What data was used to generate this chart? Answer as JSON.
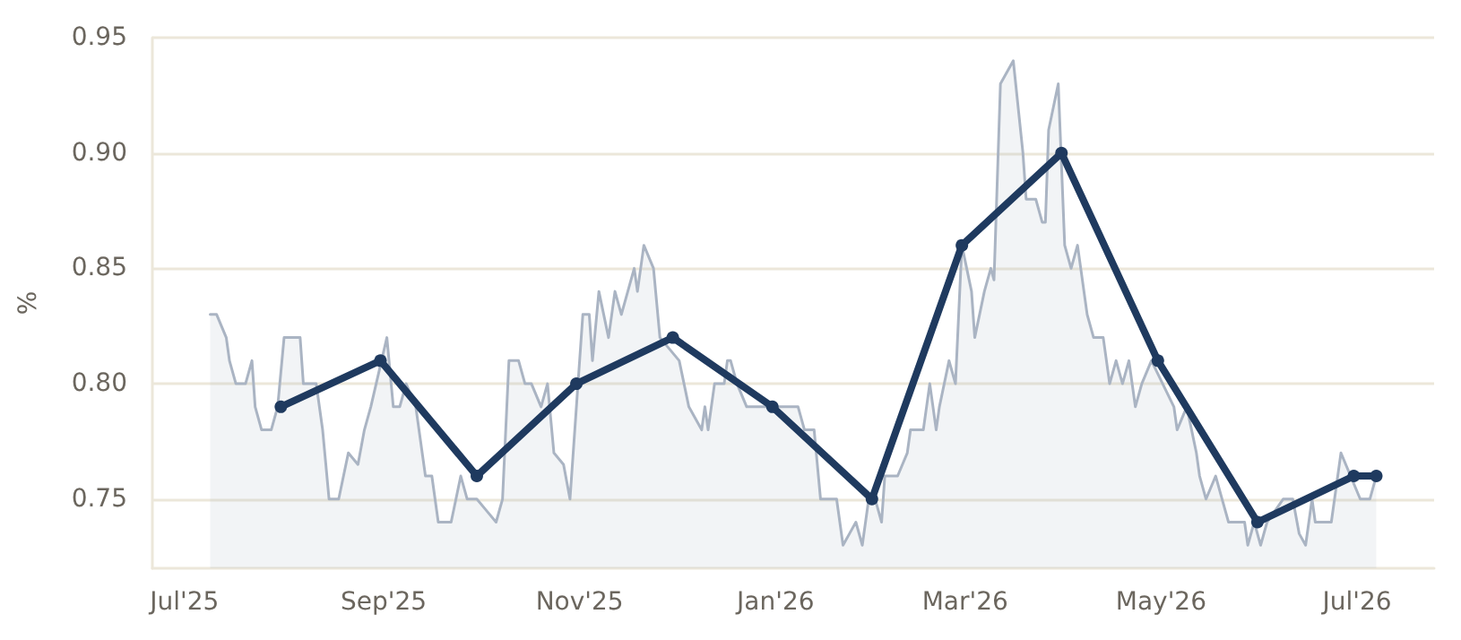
{
  "chart_data": {
    "type": "line",
    "ylabel": "%",
    "xlim": [
      "2025-06-21",
      "2026-07-25"
    ],
    "xticks": [
      {
        "value": "2025-07-01",
        "label": "Jul'25"
      },
      {
        "value": "2025-09-01",
        "label": "Sep'25"
      },
      {
        "value": "2025-11-01",
        "label": "Nov'25"
      },
      {
        "value": "2026-01-01",
        "label": "Jan'26"
      },
      {
        "value": "2026-03-01",
        "label": "Mar'26"
      },
      {
        "value": "2026-05-01",
        "label": "May'26"
      },
      {
        "value": "2026-07-01",
        "label": "Jul'26"
      }
    ],
    "ylim": [
      0.72,
      0.95
    ],
    "yticks": [
      {
        "value": 0.75,
        "label": "0.75"
      },
      {
        "value": 0.8,
        "label": "0.80"
      },
      {
        "value": 0.85,
        "label": "0.85"
      },
      {
        "value": 0.9,
        "label": "0.90"
      },
      {
        "value": 0.95,
        "label": "0.95"
      }
    ],
    "grid": "y",
    "series": [
      {
        "type": "area",
        "color": "#aab4c3",
        "marker": "none",
        "x": [
          "2025-07-09",
          "2025-07-11",
          "2025-07-14",
          "2025-07-15",
          "2025-07-17",
          "2025-07-20",
          "2025-07-22",
          "2025-07-23",
          "2025-07-25",
          "2025-07-28",
          "2025-07-30",
          "2025-08-01",
          "2025-08-06",
          "2025-08-07",
          "2025-08-11",
          "2025-08-13",
          "2025-08-15",
          "2025-08-18",
          "2025-08-21",
          "2025-08-24",
          "2025-08-26",
          "2025-08-28",
          "2025-09-02",
          "2025-09-04",
          "2025-09-06",
          "2025-09-08",
          "2025-09-11",
          "2025-09-14",
          "2025-09-16",
          "2025-09-18",
          "2025-09-22",
          "2025-09-25",
          "2025-09-27",
          "2025-09-30",
          "2025-10-03",
          "2025-10-06",
          "2025-10-08",
          "2025-10-10",
          "2025-10-13",
          "2025-10-15",
          "2025-10-17",
          "2025-10-20",
          "2025-10-22",
          "2025-10-24",
          "2025-10-27",
          "2025-10-29",
          "2025-11-02",
          "2025-11-04",
          "2025-11-05",
          "2025-11-07",
          "2025-11-10",
          "2025-11-12",
          "2025-11-14",
          "2025-11-18",
          "2025-11-19",
          "2025-11-21",
          "2025-11-24",
          "2025-11-26",
          "2025-12-02",
          "2025-12-05",
          "2025-12-09",
          "2025-12-10",
          "2025-12-11",
          "2025-12-13",
          "2025-12-16",
          "2025-12-17",
          "2025-12-18",
          "2025-12-20",
          "2025-12-23",
          "2026-01-08",
          "2026-01-10",
          "2026-01-13",
          "2026-01-15",
          "2026-01-20",
          "2026-01-22",
          "2026-01-24",
          "2026-01-26",
          "2026-01-28",
          "2026-01-30",
          "2026-02-01",
          "2026-02-03",
          "2026-02-04",
          "2026-02-08",
          "2026-02-11",
          "2026-02-12",
          "2026-02-16",
          "2026-02-18",
          "2026-02-20",
          "2026-02-21",
          "2026-02-24",
          "2026-02-26",
          "2026-02-28",
          "2026-03-03",
          "2026-03-04",
          "2026-03-07",
          "2026-03-09",
          "2026-03-10",
          "2026-03-12",
          "2026-03-16",
          "2026-03-19",
          "2026-03-20",
          "2026-03-23",
          "2026-03-25",
          "2026-03-26",
          "2026-03-27",
          "2026-03-30",
          "2026-04-01",
          "2026-04-03",
          "2026-04-05",
          "2026-04-08",
          "2026-04-10",
          "2026-04-13",
          "2026-04-15",
          "2026-04-17",
          "2026-04-19",
          "2026-04-21",
          "2026-04-23",
          "2026-04-25",
          "2026-04-28",
          "2026-05-05",
          "2026-05-06",
          "2026-05-09",
          "2026-05-12",
          "2026-05-13",
          "2026-05-15",
          "2026-05-18",
          "2026-05-20",
          "2026-05-22",
          "2026-05-27",
          "2026-05-28",
          "2026-05-30",
          "2026-06-01",
          "2026-06-03",
          "2026-06-08",
          "2026-06-11",
          "2026-06-13",
          "2026-06-15",
          "2026-06-17",
          "2026-06-18",
          "2026-06-23",
          "2026-06-26",
          "2026-06-29",
          "2026-07-02",
          "2026-07-05",
          "2026-07-07"
        ],
        "values": [
          0.83,
          0.83,
          0.82,
          0.81,
          0.8,
          0.8,
          0.81,
          0.79,
          0.78,
          0.78,
          0.79,
          0.82,
          0.82,
          0.8,
          0.8,
          0.78,
          0.75,
          0.75,
          0.77,
          0.765,
          0.78,
          0.79,
          0.82,
          0.79,
          0.79,
          0.8,
          0.79,
          0.76,
          0.76,
          0.74,
          0.74,
          0.76,
          0.75,
          0.75,
          0.745,
          0.74,
          0.75,
          0.81,
          0.81,
          0.8,
          0.8,
          0.79,
          0.8,
          0.77,
          0.765,
          0.75,
          0.83,
          0.83,
          0.81,
          0.84,
          0.82,
          0.84,
          0.83,
          0.85,
          0.84,
          0.86,
          0.85,
          0.82,
          0.81,
          0.79,
          0.78,
          0.79,
          0.78,
          0.8,
          0.8,
          0.81,
          0.81,
          0.8,
          0.79,
          0.79,
          0.78,
          0.78,
          0.75,
          0.75,
          0.73,
          0.735,
          0.74,
          0.73,
          0.75,
          0.75,
          0.74,
          0.76,
          0.76,
          0.77,
          0.78,
          0.78,
          0.8,
          0.78,
          0.79,
          0.81,
          0.8,
          0.86,
          0.84,
          0.82,
          0.84,
          0.85,
          0.845,
          0.93,
          0.94,
          0.9,
          0.88,
          0.88,
          0.87,
          0.87,
          0.91,
          0.93,
          0.86,
          0.85,
          0.86,
          0.83,
          0.82,
          0.82,
          0.8,
          0.81,
          0.8,
          0.81,
          0.79,
          0.8,
          0.81,
          0.79,
          0.78,
          0.79,
          0.77,
          0.76,
          0.75,
          0.76,
          0.75,
          0.74,
          0.74,
          0.73,
          0.74,
          0.73,
          0.74,
          0.75,
          0.75,
          0.735,
          0.73,
          0.75,
          0.74,
          0.74,
          0.77,
          0.76,
          0.75,
          0.75,
          0.76
        ]
      },
      {
        "color": "#1f3a5f",
        "marker": "circle",
        "x": [
          "2025-07-31",
          "2025-08-31",
          "2025-09-30",
          "2025-10-31",
          "2025-11-30",
          "2025-12-31",
          "2026-01-31",
          "2026-02-28",
          "2026-03-31",
          "2026-04-30",
          "2026-05-31",
          "2026-06-30",
          "2026-07-07"
        ],
        "values": [
          0.79,
          0.81,
          0.76,
          0.8,
          0.82,
          0.79,
          0.75,
          0.86,
          0.9,
          0.81,
          0.74,
          0.76,
          0.76
        ]
      }
    ]
  }
}
